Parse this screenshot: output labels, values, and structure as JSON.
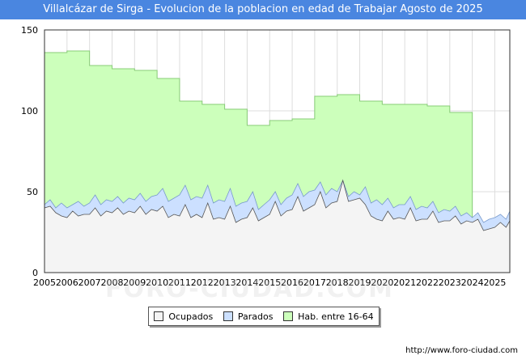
{
  "chart_data": {
    "type": "area",
    "title": "Villalcázar de Sirga - Evolucion de la poblacion en edad de Trabajar Agosto de 2025",
    "xlabel": "",
    "ylabel": "",
    "ylim": [
      0,
      150
    ],
    "yticks": [
      0,
      50,
      100,
      150
    ],
    "xlim": [
      2005,
      2025.6667
    ],
    "xticks": [
      2005,
      2006,
      2007,
      2008,
      2009,
      2010,
      2011,
      2012,
      2013,
      2014,
      2015,
      2016,
      2017,
      2018,
      2019,
      2020,
      2021,
      2022,
      2023,
      2024,
      2025
    ],
    "grid": true,
    "legend_position": "bottom",
    "series": [
      {
        "name": "Hab. entre 16-64",
        "color": "#ccffbb",
        "stroke": "#88cc77",
        "years": [
          2005,
          2006,
          2007,
          2008,
          2009,
          2010,
          2011,
          2012,
          2013,
          2014,
          2015,
          2016,
          2017,
          2018,
          2019,
          2020,
          2021,
          2022,
          2023
        ],
        "values": [
          136,
          137,
          128,
          126,
          125,
          120,
          106,
          104,
          101,
          91,
          94,
          95,
          109,
          110,
          106,
          104,
          104,
          103,
          99
        ]
      },
      {
        "name": "Parados",
        "color": "#cce0ff",
        "stroke": "#7799cc",
        "x": [
          2005.0,
          2005.25,
          2005.5,
          2005.75,
          2006.0,
          2006.25,
          2006.5,
          2006.75,
          2007.0,
          2007.25,
          2007.5,
          2007.75,
          2008.0,
          2008.25,
          2008.5,
          2008.75,
          2009.0,
          2009.25,
          2009.5,
          2009.75,
          2010.0,
          2010.25,
          2010.5,
          2010.75,
          2011.0,
          2011.25,
          2011.5,
          2011.75,
          2012.0,
          2012.25,
          2012.5,
          2012.75,
          2013.0,
          2013.25,
          2013.5,
          2013.75,
          2014.0,
          2014.25,
          2014.5,
          2014.75,
          2015.0,
          2015.25,
          2015.5,
          2015.75,
          2016.0,
          2016.25,
          2016.5,
          2016.75,
          2017.0,
          2017.25,
          2017.5,
          2017.75,
          2018.0,
          2018.25,
          2018.5,
          2018.75,
          2019.0,
          2019.25,
          2019.5,
          2019.75,
          2020.0,
          2020.25,
          2020.5,
          2020.75,
          2021.0,
          2021.25,
          2021.5,
          2021.75,
          2022.0,
          2022.25,
          2022.5,
          2022.75,
          2023.0,
          2023.25,
          2023.5,
          2023.75,
          2024.0,
          2024.25,
          2024.5,
          2024.75,
          2025.0,
          2025.25,
          2025.5,
          2025.6667
        ],
        "values": [
          42,
          45,
          40,
          43,
          40,
          42,
          44,
          41,
          43,
          48,
          42,
          45,
          44,
          47,
          43,
          46,
          45,
          49,
          44,
          47,
          48,
          52,
          44,
          46,
          48,
          54,
          45,
          47,
          46,
          54,
          43,
          45,
          44,
          52,
          41,
          43,
          44,
          50,
          39,
          42,
          45,
          50,
          42,
          46,
          48,
          55,
          47,
          50,
          51,
          56,
          48,
          52,
          50,
          57,
          47,
          50,
          48,
          53,
          43,
          45,
          42,
          46,
          40,
          42,
          42,
          47,
          39,
          41,
          40,
          44,
          37,
          39,
          38,
          41,
          35,
          37,
          34,
          37,
          31,
          33,
          34,
          36,
          33,
          38
        ]
      },
      {
        "name": "Ocupados",
        "color": "#f4f4f4",
        "stroke": "#555555",
        "x": [
          2005.0,
          2005.25,
          2005.5,
          2005.75,
          2006.0,
          2006.25,
          2006.5,
          2006.75,
          2007.0,
          2007.25,
          2007.5,
          2007.75,
          2008.0,
          2008.25,
          2008.5,
          2008.75,
          2009.0,
          2009.25,
          2009.5,
          2009.75,
          2010.0,
          2010.25,
          2010.5,
          2010.75,
          2011.0,
          2011.25,
          2011.5,
          2011.75,
          2012.0,
          2012.25,
          2012.5,
          2012.75,
          2013.0,
          2013.25,
          2013.5,
          2013.75,
          2014.0,
          2014.25,
          2014.5,
          2014.75,
          2015.0,
          2015.25,
          2015.5,
          2015.75,
          2016.0,
          2016.25,
          2016.5,
          2016.75,
          2017.0,
          2017.25,
          2017.5,
          2017.75,
          2018.0,
          2018.25,
          2018.5,
          2018.75,
          2019.0,
          2019.25,
          2019.5,
          2019.75,
          2020.0,
          2020.25,
          2020.5,
          2020.75,
          2021.0,
          2021.25,
          2021.5,
          2021.75,
          2022.0,
          2022.25,
          2022.5,
          2022.75,
          2023.0,
          2023.25,
          2023.5,
          2023.75,
          2024.0,
          2024.25,
          2024.5,
          2024.75,
          2025.0,
          2025.25,
          2025.5,
          2025.6667
        ],
        "values": [
          40,
          41,
          37,
          35,
          34,
          38,
          35,
          36,
          36,
          40,
          35,
          38,
          37,
          40,
          36,
          38,
          37,
          41,
          36,
          39,
          38,
          41,
          34,
          36,
          35,
          42,
          34,
          36,
          34,
          43,
          33,
          34,
          33,
          41,
          31,
          33,
          34,
          40,
          32,
          34,
          36,
          44,
          35,
          38,
          39,
          47,
          38,
          40,
          42,
          50,
          40,
          43,
          44,
          57,
          44,
          45,
          46,
          42,
          35,
          33,
          32,
          38,
          33,
          34,
          33,
          40,
          32,
          33,
          33,
          38,
          31,
          32,
          32,
          35,
          30,
          32,
          31,
          33,
          26,
          27,
          28,
          31,
          28,
          32
        ]
      }
    ]
  },
  "footer": {
    "url": "http://www.foro-ciudad.com"
  },
  "watermark": "FORO-CIUDAD.COM"
}
